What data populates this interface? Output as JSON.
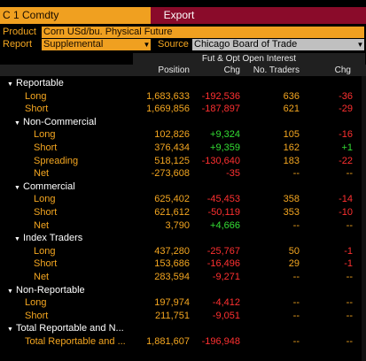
{
  "header": {
    "ticker": "C 1 Comdty",
    "export_label": "Export"
  },
  "controls": {
    "product_label": "Product",
    "product_value": "Corn USd/bu. Physical Future",
    "report_label": "Report",
    "report_value": "Supplemental",
    "source_label": "Source",
    "source_value": "Chicago Board of Trade"
  },
  "table": {
    "group_header": "Fut & Opt Open Interest",
    "columns": {
      "position": "Position",
      "chg": "Chg",
      "traders": "No. Traders",
      "chg2": "Chg"
    },
    "rows": [
      {
        "label": "Reportable",
        "indent": 0,
        "group": true,
        "position": "",
        "chg": "",
        "traders": "",
        "chg2": ""
      },
      {
        "label": "Long",
        "indent": 1,
        "group": false,
        "position": "1,683,633",
        "chg": "-192,536",
        "traders": "636",
        "chg2": "-36"
      },
      {
        "label": "Short",
        "indent": 1,
        "group": false,
        "position": "1,669,856",
        "chg": "-187,897",
        "traders": "621",
        "chg2": "-29"
      },
      {
        "label": "Non-Commercial",
        "indent": 1,
        "group": true,
        "position": "",
        "chg": "",
        "traders": "",
        "chg2": ""
      },
      {
        "label": "Long",
        "indent": 2,
        "group": false,
        "position": "102,826",
        "chg": "+9,324",
        "traders": "105",
        "chg2": "-16"
      },
      {
        "label": "Short",
        "indent": 2,
        "group": false,
        "position": "376,434",
        "chg": "+9,359",
        "traders": "162",
        "chg2": "+1"
      },
      {
        "label": "Spreading",
        "indent": 2,
        "group": false,
        "position": "518,125",
        "chg": "-130,640",
        "traders": "183",
        "chg2": "-22"
      },
      {
        "label": "Net",
        "indent": 2,
        "group": false,
        "position": "-273,608",
        "chg": "-35",
        "traders": "--",
        "chg2": "--"
      },
      {
        "label": "Commercial",
        "indent": 1,
        "group": true,
        "position": "",
        "chg": "",
        "traders": "",
        "chg2": ""
      },
      {
        "label": "Long",
        "indent": 2,
        "group": false,
        "position": "625,402",
        "chg": "-45,453",
        "traders": "358",
        "chg2": "-14"
      },
      {
        "label": "Short",
        "indent": 2,
        "group": false,
        "position": "621,612",
        "chg": "-50,119",
        "traders": "353",
        "chg2": "-10"
      },
      {
        "label": "Net",
        "indent": 2,
        "group": false,
        "position": "3,790",
        "chg": "+4,666",
        "traders": "--",
        "chg2": "--"
      },
      {
        "label": "Index Traders",
        "indent": 1,
        "group": true,
        "position": "",
        "chg": "",
        "traders": "",
        "chg2": ""
      },
      {
        "label": "Long",
        "indent": 2,
        "group": false,
        "position": "437,280",
        "chg": "-25,767",
        "traders": "50",
        "chg2": "-1"
      },
      {
        "label": "Short",
        "indent": 2,
        "group": false,
        "position": "153,686",
        "chg": "-16,496",
        "traders": "29",
        "chg2": "-1"
      },
      {
        "label": "Net",
        "indent": 2,
        "group": false,
        "position": "283,594",
        "chg": "-9,271",
        "traders": "--",
        "chg2": "--"
      },
      {
        "label": "Non-Reportable",
        "indent": 0,
        "group": true,
        "position": "",
        "chg": "",
        "traders": "",
        "chg2": ""
      },
      {
        "label": "Long",
        "indent": 1,
        "group": false,
        "position": "197,974",
        "chg": "-4,412",
        "traders": "--",
        "chg2": "--"
      },
      {
        "label": "Short",
        "indent": 1,
        "group": false,
        "position": "211,751",
        "chg": "-9,051",
        "traders": "--",
        "chg2": "--"
      },
      {
        "label": "Total Reportable and N...",
        "indent": 0,
        "group": true,
        "position": "",
        "chg": "",
        "traders": "",
        "chg2": ""
      },
      {
        "label": "Total Reportable and ...",
        "indent": 1,
        "group": false,
        "position": "1,881,607",
        "chg": "-196,948",
        "traders": "--",
        "chg2": "--"
      }
    ]
  }
}
